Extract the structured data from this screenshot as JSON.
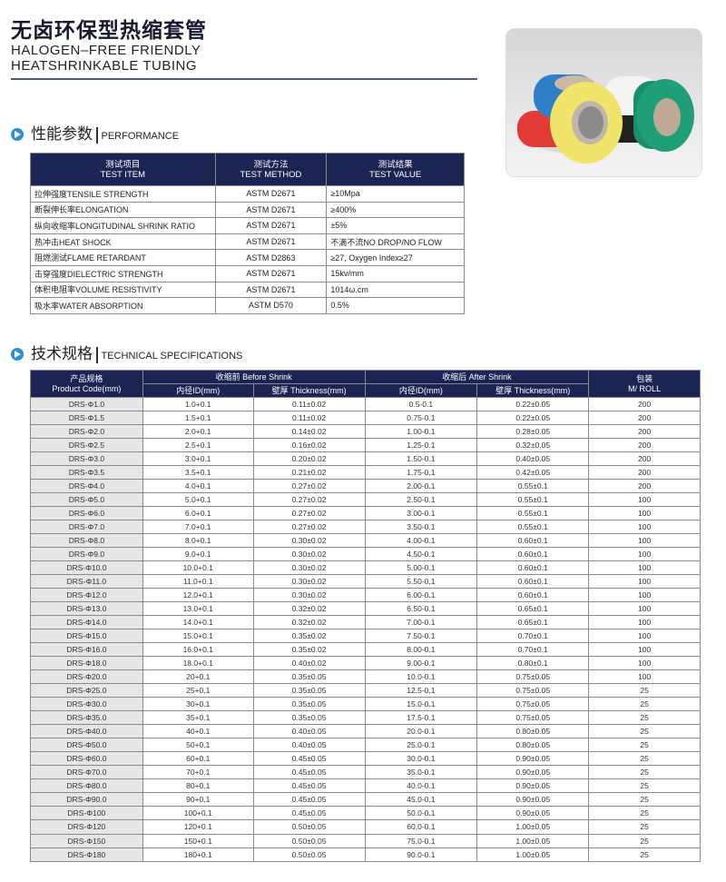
{
  "header": {
    "title_cn": "无卤环保型热缩套管",
    "title_en_line1": "HALOGEN–FREE FRIENDLY",
    "title_en_line2": "HEATSHRINKABLE TUBING"
  },
  "product_photo": {
    "colors": [
      "#2f7fc8",
      "#e23a35",
      "#f1e46a",
      "#ffffff",
      "#1f9e78",
      "#222222"
    ]
  },
  "performance": {
    "heading_cn": "性能参数",
    "heading_en": "PERFORMANCE",
    "columns": [
      {
        "cn": "测试项目",
        "en": "TEST ITEM"
      },
      {
        "cn": "测试方法",
        "en": "TEST METHOD"
      },
      {
        "cn": "测试结果",
        "en": "TEST VALUE"
      }
    ],
    "rows": [
      [
        "拉伸强度TENSILE STRENGTH",
        "ASTM D2671",
        "≥10Mpa"
      ],
      [
        "断裂伸长率ELONGATION",
        "ASTM D2671",
        "≥400%"
      ],
      [
        "纵向收缩率LONGITUDINAL SHRINK RATIO",
        "ASTM D2671",
        "±5%"
      ],
      [
        "热冲击HEAT SHOCK",
        "ASTM D2671",
        "不滴不流NO DROP/NO FLOW"
      ],
      [
        "阻燃测试FLAME RETARDANT",
        "ASTM D2863",
        "≥27, Oxygen Index≥27"
      ],
      [
        "击穿强度DIELECTRIC STRENGTH",
        "ASTM D2671",
        "15kv/mm"
      ],
      [
        "体积电阻率VOLUME RESISTIVITY",
        "ASTM D2671",
        "1014ω.cm"
      ],
      [
        "吸水率WATER ABSORPTION",
        "ASTM D570",
        "0.5%"
      ]
    ]
  },
  "specs": {
    "heading_cn": "技术规格",
    "heading_en": "TECHNICAL SPECIFICATIONS",
    "header": {
      "code_cn": "产品规格",
      "code_en": "Product Code(mm)",
      "before": "收缩前 Before Shrink",
      "after": "收缩后 After Shrink",
      "id": "内径ID(mm)",
      "thickness": "壁厚 Thickness(mm)",
      "pack_cn": "包装",
      "pack_en": "M/ ROLL"
    },
    "rows": [
      [
        "DRS-Φ1.0",
        "1.0+0.1",
        "0.11±0.02",
        "0.5-0.1",
        "0.22±0.05",
        "200"
      ],
      [
        "DRS-Φ1.5",
        "1.5+0.1",
        "0.11±0.02",
        "0.75-0.1",
        "0.22±0.05",
        "200"
      ],
      [
        "DRS-Φ2.0",
        "2.0+0.1",
        "0.14±0.02",
        "1.00-0.1",
        "0.28±0.05",
        "200"
      ],
      [
        "DRS-Φ2.5",
        "2.5+0.1",
        "0.16±0.02",
        "1.25-0.1",
        "0.32±0.05",
        "200"
      ],
      [
        "DRS-Φ3.0",
        "3.0+0.1",
        "0.20±0.02",
        "1.50-0.1",
        "0.40±0.05",
        "200"
      ],
      [
        "DRS-Φ3.5",
        "3.5+0.1",
        "0.21±0.02",
        "1.75-0.1",
        "0.42±0.05",
        "200"
      ],
      [
        "DRS-Φ4.0",
        "4.0+0.1",
        "0.27±0.02",
        "2.00-0.1",
        "0.55±0.1",
        "200"
      ],
      [
        "DRS-Φ5.0",
        "5.0+0.1",
        "0.27±0.02",
        "2.50-0.1",
        "0.55±0.1",
        "100"
      ],
      [
        "DRS-Φ6.0",
        "6.0+0.1",
        "0.27±0.02",
        "3.00-0.1",
        "0.55±0.1",
        "100"
      ],
      [
        "DRS-Φ7.0",
        "7.0+0.1",
        "0.27±0.02",
        "3.50-0.1",
        "0.55±0.1",
        "100"
      ],
      [
        "DRS-Φ8.0",
        "8.0+0.1",
        "0.30±0.02",
        "4.00-0.1",
        "0.60±0.1",
        "100"
      ],
      [
        "DRS-Φ9.0",
        "9.0+0.1",
        "0.30±0.02",
        "4.50-0.1",
        "0.60±0.1",
        "100"
      ],
      [
        "DRS-Φ10.0",
        "10.0+0.1",
        "0.30±0.02",
        "5.00-0.1",
        "0.60±0.1",
        "100"
      ],
      [
        "DRS-Φ11.0",
        "11.0+0.1",
        "0.30±0.02",
        "5.50-0.1",
        "0.60±0.1",
        "100"
      ],
      [
        "DRS-Φ12.0",
        "12.0+0.1",
        "0.30±0.02",
        "6.00-0.1",
        "0.60±0.1",
        "100"
      ],
      [
        "DRS-Φ13.0",
        "13.0+0.1",
        "0.32±0.02",
        "6.50-0.1",
        "0.65±0.1",
        "100"
      ],
      [
        "DRS-Φ14.0",
        "14.0+0.1",
        "0.32±0.02",
        "7.00-0.1",
        "0.65±0.1",
        "100"
      ],
      [
        "DRS-Φ15.0",
        "15.0+0.1",
        "0.35±0.02",
        "7.50-0.1",
        "0.70±0.1",
        "100"
      ],
      [
        "DRS-Φ16.0",
        "16.0+0.1",
        "0.35±0.02",
        "8.00-0.1",
        "0.70±0.1",
        "100"
      ],
      [
        "DRS-Φ18.0",
        "18.0+0.1",
        "0.40±0.02",
        "9.00-0.1",
        "0.80±0.1",
        "100"
      ],
      [
        "DRS-Φ20.0",
        "20+0.1",
        "0.35±0.05",
        "10.0-0.1",
        "0.75±0.05",
        "100"
      ],
      [
        "DRS-Φ25.0",
        "25+0.1",
        "0.35±0.05",
        "12.5-0.1",
        "0.75±0.05",
        "25"
      ],
      [
        "DRS-Φ30.0",
        "30+0.1",
        "0.35±0.05",
        "15.0-0.1",
        "0.75±0.05",
        "25"
      ],
      [
        "DRS-Φ35.0",
        "35+0.1",
        "0.35±0.05",
        "17.5-0.1",
        "0.75±0.05",
        "25"
      ],
      [
        "DRS-Φ40.0",
        "40+0.1",
        "0.40±0.05",
        "20.0-0.1",
        "0.80±0.05",
        "25"
      ],
      [
        "DRS-Φ50.0",
        "50+0.1",
        "0.40±0.05",
        "25.0-0.1",
        "0.80±0.05",
        "25"
      ],
      [
        "DRS-Φ60.0",
        "60+0.1",
        "0.45±0.05",
        "30.0-0.1",
        "0.90±0.05",
        "25"
      ],
      [
        "DRS-Φ70.0",
        "70+0.1",
        "0.45±0.05",
        "35.0-0.1",
        "0.90±0.05",
        "25"
      ],
      [
        "DRS-Φ80.0",
        "80+0.1",
        "0.45±0.05",
        "40.0-0.1",
        "0.90±0.05",
        "25"
      ],
      [
        "DRS-Φ90.0",
        "90+0.1",
        "0.45±0.05",
        "45.0-0.1",
        "0.90±0.05",
        "25"
      ],
      [
        "DRS-Φ100",
        "100+0.1",
        "0.45±0.05",
        "50.0-0.1",
        "0.90±0.05",
        "25"
      ],
      [
        "DRS-Φ120",
        "120+0.1",
        "0.50±0.05",
        "60.0-0.1",
        "1.00±0.05",
        "25"
      ],
      [
        "DRS-Φ150",
        "150+0.1",
        "0.50±0.05",
        "75.0-0.1",
        "1.00±0.05",
        "25"
      ],
      [
        "DRS-Φ180",
        "180+0.1",
        "0.50±0.05",
        "90.0-0.1",
        "1.00±0.05",
        "25"
      ]
    ]
  }
}
